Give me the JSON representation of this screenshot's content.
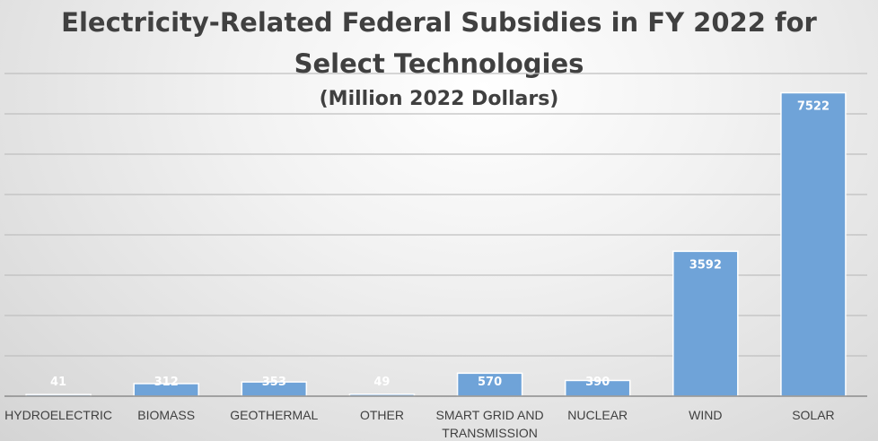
{
  "chart_data": {
    "type": "bar",
    "title": "Electricity-Related Federal Subsidies in FY 2022 for Select Technologies",
    "title_lines": [
      "Electricity-Related Federal Subsidies in FY 2022 for",
      "Select Technologies"
    ],
    "subtitle": "(Million 2022 Dollars)",
    "xlabel": "",
    "ylabel": "",
    "categories": [
      "HYDROELECTRIC",
      "BIOMASS",
      "GEOTHERMAL",
      "OTHER",
      "SMART GRID AND TRANSMISSION",
      "NUCLEAR",
      "WIND",
      "SOLAR"
    ],
    "category_lines": [
      [
        "HYDROELECTRIC"
      ],
      [
        "BIOMASS"
      ],
      [
        "GEOTHERMAL"
      ],
      [
        "OTHER"
      ],
      [
        "SMART GRID AND",
        "TRANSMISSION"
      ],
      [
        "NUCLEAR"
      ],
      [
        "WIND"
      ],
      [
        "SOLAR"
      ]
    ],
    "values": [
      41,
      312,
      353,
      49,
      570,
      390,
      3592,
      7522
    ],
    "ylim": [
      0,
      8000
    ],
    "grid": true,
    "gridline_step": 1000,
    "bar_color": "#6fa3d8",
    "bar_border_color": "#ffffff",
    "data_label_color": "#ffffff",
    "legend": "none"
  }
}
